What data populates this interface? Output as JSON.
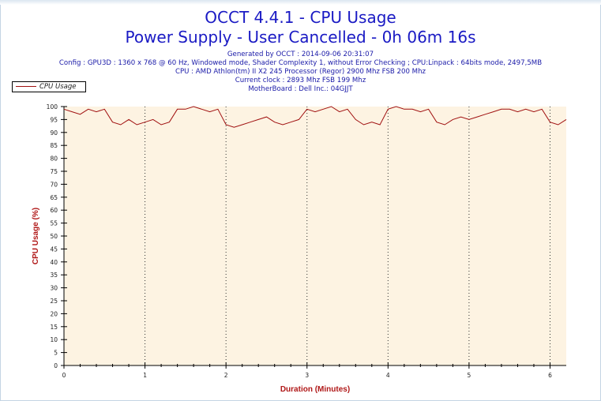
{
  "header": {
    "title": "OCCT 4.4.1 - CPU Usage",
    "subtitle": "Power Supply - User Cancelled - 0h 06m 16s",
    "info_lines": [
      "Generated by OCCT : 2014-09-06 20:31:07",
      "Config : GPU3D : 1360 x 768 @ 60 Hz, Windowed mode, Shader Complexity 1, without Error Checking ; CPU:Linpack : 64bits mode, 2497,5MB",
      "CPU : AMD Athlon(tm) II X2 245 Processor (Regor) 2900 Mhz FSB 200 Mhz",
      "Current clock : 2893 Mhz FSB 199 Mhz",
      "MotherBoard : Dell Inc.: 04GJJT"
    ]
  },
  "colors": {
    "series": "#a01010",
    "plot_background": "#fdf3e2",
    "axis_label": "#b01818",
    "title": "#1a1ac4"
  },
  "chart_data": {
    "type": "line",
    "title": "OCCT 4.4.1 - CPU Usage",
    "xlabel": "Duration (Minutes)",
    "ylabel": "CPU Usage (%)",
    "xlim": [
      0,
      6.2
    ],
    "ylim": [
      0,
      100
    ],
    "x_ticks": [
      0,
      1,
      2,
      3,
      4,
      5,
      6
    ],
    "y_ticks": [
      0,
      5,
      10,
      15,
      20,
      25,
      30,
      35,
      40,
      45,
      50,
      55,
      60,
      65,
      70,
      75,
      80,
      85,
      90,
      95,
      100
    ],
    "grid": "vertical dotted lines at each minute",
    "legend": "top-left",
    "series": [
      {
        "name": "CPU Usage",
        "x": [
          0,
          0.1,
          0.2,
          0.3,
          0.4,
          0.5,
          0.6,
          0.7,
          0.8,
          0.9,
          1.0,
          1.1,
          1.2,
          1.3,
          1.4,
          1.5,
          1.6,
          1.7,
          1.8,
          1.9,
          2.0,
          2.1,
          2.2,
          2.3,
          2.4,
          2.5,
          2.6,
          2.7,
          2.8,
          2.9,
          3.0,
          3.1,
          3.2,
          3.3,
          3.4,
          3.5,
          3.6,
          3.7,
          3.8,
          3.9,
          4.0,
          4.1,
          4.2,
          4.3,
          4.4,
          4.5,
          4.6,
          4.7,
          4.8,
          4.9,
          5.0,
          5.1,
          5.2,
          5.3,
          5.4,
          5.5,
          5.6,
          5.7,
          5.8,
          5.9,
          6.0,
          6.1,
          6.2
        ],
        "values": [
          99,
          98,
          97,
          99,
          98,
          99,
          94,
          93,
          95,
          93,
          94,
          95,
          93,
          94,
          99,
          99,
          100,
          99,
          98,
          99,
          93,
          92,
          93,
          94,
          95,
          96,
          94,
          93,
          94,
          95,
          99,
          98,
          99,
          100,
          98,
          99,
          95,
          93,
          94,
          93,
          99,
          100,
          99,
          99,
          98,
          99,
          94,
          93,
          95,
          96,
          95,
          96,
          97,
          98,
          99,
          99,
          98,
          99,
          98,
          99,
          94,
          93,
          95
        ]
      }
    ]
  }
}
